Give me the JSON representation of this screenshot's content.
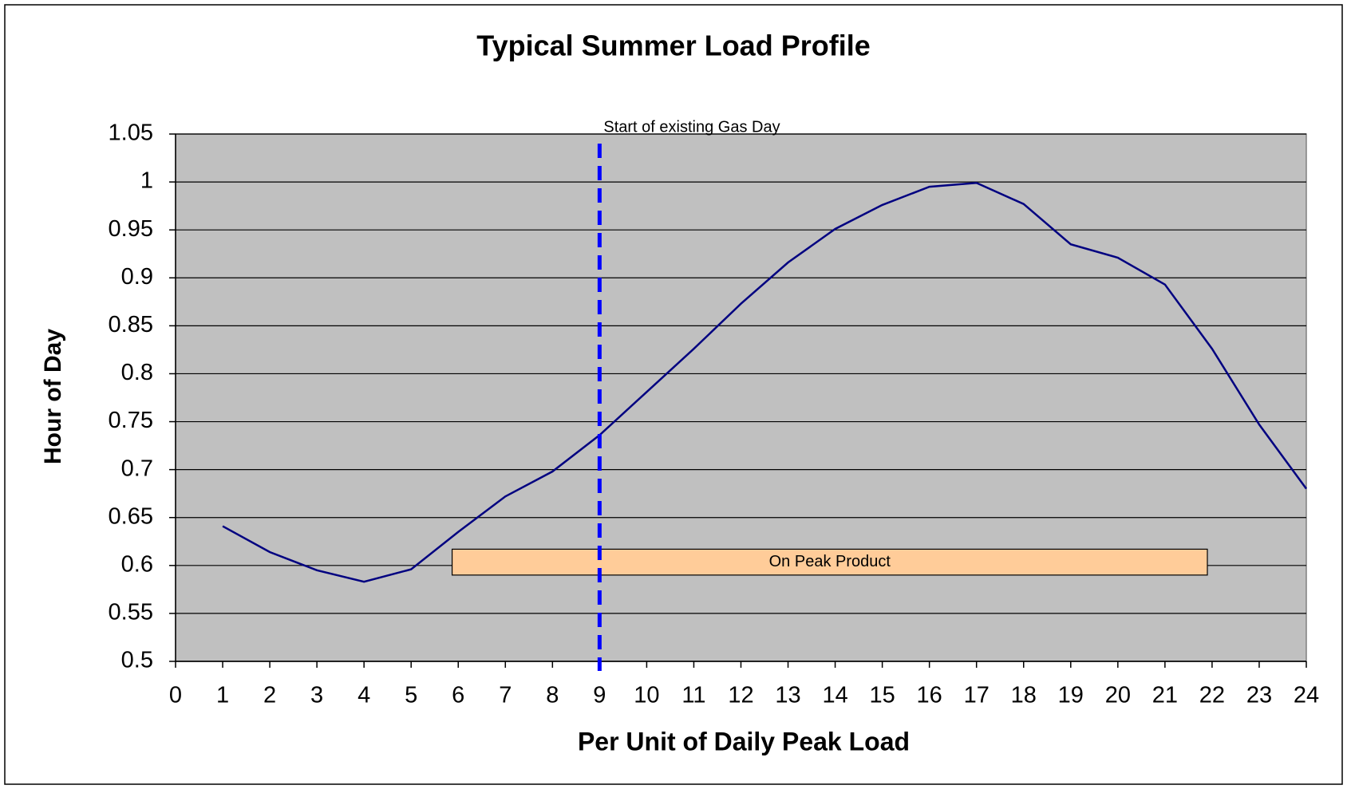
{
  "chart_data": {
    "type": "line",
    "title": "Typical Summer Load Profile",
    "x_label": "Per Unit of Daily Peak Load",
    "y_label": "Hour of Day",
    "x": [
      1,
      2,
      3,
      4,
      5,
      6,
      7,
      8,
      9,
      10,
      11,
      12,
      13,
      14,
      15,
      16,
      17,
      18,
      19,
      20,
      21,
      22,
      23,
      24
    ],
    "series": [
      {
        "color": "#000080",
        "values": [
          0.641,
          0.614,
          0.595,
          0.583,
          0.596,
          0.635,
          0.672,
          0.698,
          0.736,
          0.781,
          0.826,
          0.873,
          0.916,
          0.951,
          0.976,
          0.995,
          0.999,
          0.977,
          0.935,
          0.921,
          0.893,
          0.826,
          0.747,
          0.68
        ]
      }
    ],
    "xlim": [
      0,
      24
    ],
    "xticks": [
      0,
      1,
      2,
      3,
      4,
      5,
      6,
      7,
      8,
      9,
      10,
      11,
      12,
      13,
      14,
      15,
      16,
      17,
      18,
      19,
      20,
      21,
      22,
      23,
      24
    ],
    "ylim": [
      0.5,
      1.05
    ],
    "yticks": [
      0.5,
      0.55,
      0.6,
      0.65,
      0.7,
      0.75,
      0.8,
      0.85,
      0.9,
      0.95,
      1,
      1.05
    ],
    "grid": true,
    "plot_background": "#c0c0c0",
    "annotations": [
      {
        "kind": "vline",
        "x": 9,
        "text": "Start of existing Gas Day",
        "color": "#0000ff"
      },
      {
        "kind": "box",
        "x": [
          5.87,
          21.9
        ],
        "y": [
          0.59,
          0.617
        ],
        "text": "On Peak Product",
        "color": "#ffcc99"
      }
    ]
  }
}
